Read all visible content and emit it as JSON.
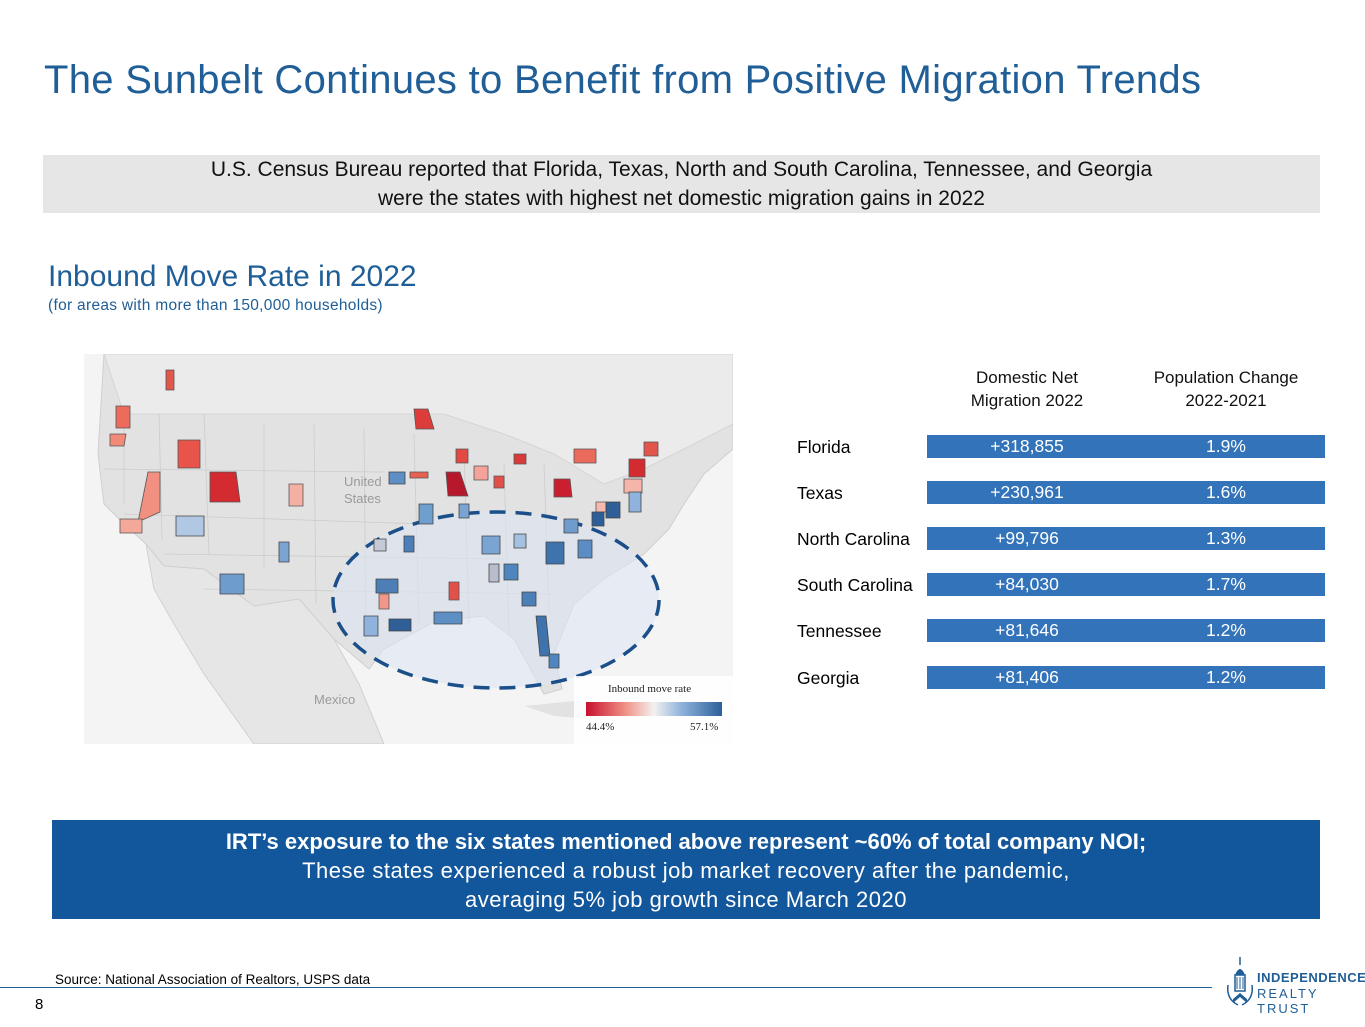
{
  "title": "The Sunbelt Continues to Benefit from Positive Migration Trends",
  "banner": {
    "line1": "U.S. Census Bureau reported that Florida, Texas, North and South Carolina, Tennessee, and Georgia",
    "line2": "were the states with highest net domestic migration gains in 2022"
  },
  "section": {
    "title": "Inbound Move Rate in 2022",
    "note": "(for areas with more than 150,000 households)"
  },
  "map": {
    "labels": {
      "us_line1": "United",
      "us_line2": "States",
      "mexico": "Mexico"
    },
    "legend": {
      "title": "Inbound move rate",
      "min": "44.4%",
      "max": "57.1%"
    },
    "colors": {
      "low": "#c8102e",
      "high": "#2c5f9a",
      "land": "#e3e3e3",
      "water": "#f7f7f7",
      "ellipse": "#1a4f8a"
    }
  },
  "table": {
    "headers": {
      "col1_line1": "Domestic Net",
      "col1_line2": "Migration 2022",
      "col2_line1": "Population Change",
      "col2_line2": "2022-2021"
    },
    "rows": [
      {
        "state": "Florida",
        "migration": "+318,855",
        "change": "1.9%"
      },
      {
        "state": "Texas",
        "migration": "+230,961",
        "change": "1.6%"
      },
      {
        "state": "North Carolina",
        "migration": "+99,796",
        "change": "1.3%"
      },
      {
        "state": "South Carolina",
        "migration": "+84,030",
        "change": "1.7%"
      },
      {
        "state": "Tennessee",
        "migration": "+81,646",
        "change": "1.2%"
      },
      {
        "state": "Georgia",
        "migration": "+81,406",
        "change": "1.2%"
      }
    ],
    "bar_color": "#3273b9"
  },
  "callout": {
    "line1": "IRT’s exposure to the six states mentioned above represent ~60% of total company NOI;",
    "line2": "These states experienced a robust job market recovery after the pandemic,",
    "line3": "averaging 5% job growth since March 2020"
  },
  "source": "Source: National Association of Realtors, USPS data",
  "page_number": "8",
  "logo": {
    "line1": "INDEPENDENCE",
    "line2": "REALTY TRUST"
  }
}
